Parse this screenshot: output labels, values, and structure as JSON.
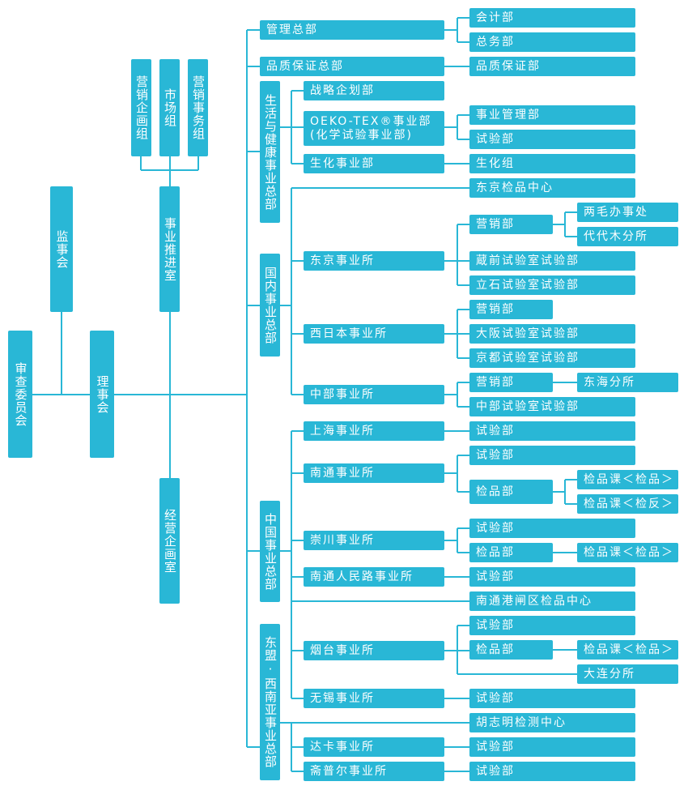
{
  "nodes": [
    "审查委员会",
    "监事会",
    "理事会",
    "营销企画组",
    "市场组",
    "营销事务组",
    "事业推进室",
    "经营企画室",
    "管理总部",
    "品质保证总部",
    "生活与健康事业总部",
    "国内事业总部",
    "中国事业总部",
    "东盟·西南亚事业总部",
    "战略企划部",
    "OEKO-TEX®事业部\n(化学试验事业部)",
    "生化事业部",
    "东京事业所",
    "西日本事业所",
    "中部事业所",
    "上海事业所",
    "南通事业所",
    "崇川事业所",
    "南通人民路事业所",
    "烟台事业所",
    "无锡事业所",
    "达卡事业所",
    "斋普尔事业所",
    "会计部",
    "总务部",
    "品质保证部",
    "事业管理部",
    "试验部",
    "生化组",
    "东京检品中心",
    "营销部",
    "蔵前试验室试验部",
    "立石试验室试验部",
    "营销部",
    "大阪试验室试验部",
    "京都试验室试验部",
    "营销部",
    "中部试验室试验部",
    "试验部",
    "试验部",
    "检品部",
    "试验部",
    "检品部",
    "试验部",
    "南通港闸区检品中心",
    "试验部",
    "检品部",
    "试验部",
    "胡志明检测中心",
    "试验部",
    "试验部",
    "两毛办事处",
    "代代木分所",
    "东海分所",
    "检品课＜检品＞",
    "检品课＜检反＞",
    "检品课＜检品＞",
    "检品课＜检品＞",
    "大连分所"
  ]
}
